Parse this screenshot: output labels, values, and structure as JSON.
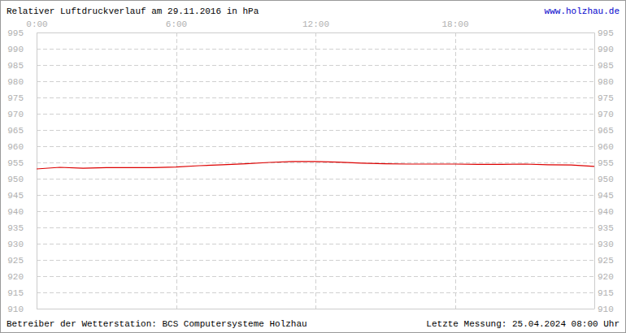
{
  "chart_data": {
    "type": "line",
    "title": "Relativer Luftdruckverlauf am 29.11.2016 in hPa",
    "annotations": [
      "www.holzhau.de",
      "Betreiber der Wetterstation: BCS Computersysteme Holzhau",
      "Letzte Messung: 25.04.2024 08:00 Uhr"
    ],
    "x": [
      0,
      1,
      2,
      3,
      4,
      5,
      6,
      7,
      8,
      9,
      10,
      11,
      12,
      13,
      14,
      15,
      16,
      17,
      18,
      19,
      20,
      21,
      22,
      23,
      24
    ],
    "values": [
      953.0,
      953.5,
      953.2,
      953.4,
      953.4,
      953.4,
      953.6,
      954.0,
      954.3,
      954.6,
      955.0,
      955.3,
      955.3,
      955.1,
      954.8,
      954.6,
      954.5,
      954.5,
      954.5,
      954.4,
      954.4,
      954.5,
      954.3,
      954.2,
      953.8
    ],
    "color": "#dd0000",
    "xlim": [
      0,
      24
    ],
    "xticks": [
      {
        "value": 0,
        "label": "0:00"
      },
      {
        "value": 6,
        "label": "6:00"
      },
      {
        "value": 12,
        "label": "12:00"
      },
      {
        "value": 18,
        "label": "18:00"
      }
    ],
    "ylim": [
      910,
      995
    ],
    "yticks": [
      910,
      915,
      920,
      925,
      930,
      935,
      940,
      945,
      950,
      955,
      960,
      965,
      970,
      975,
      980,
      985,
      990,
      995
    ],
    "grid": true
  }
}
